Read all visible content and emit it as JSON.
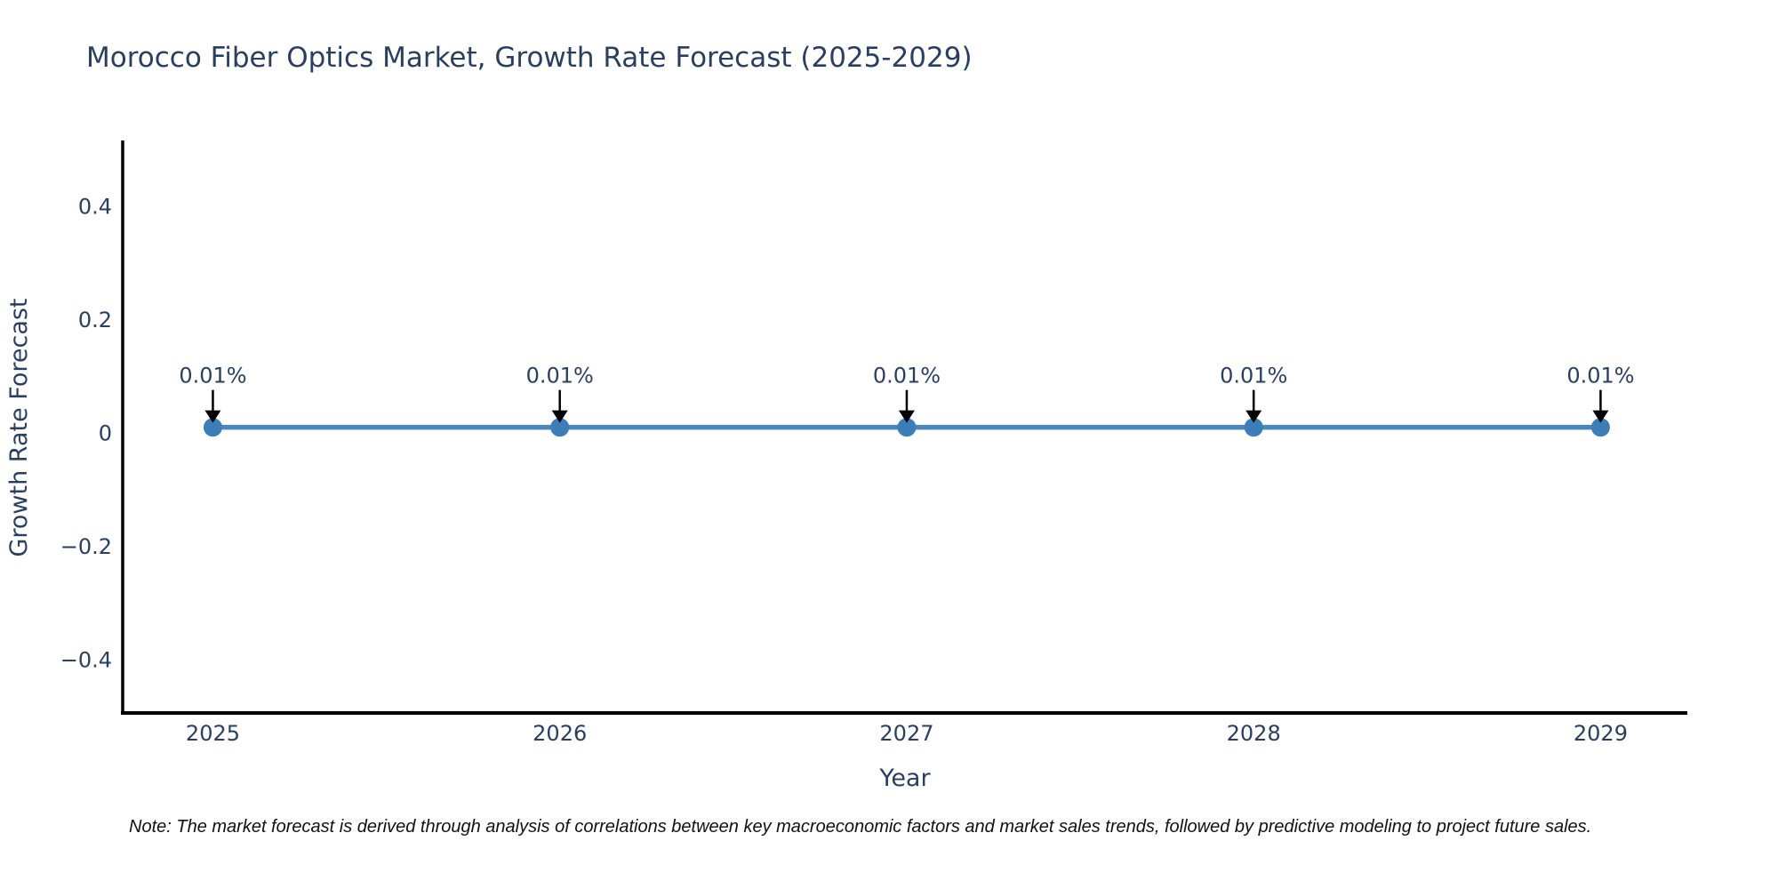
{
  "title": "Morocco Fiber Optics Market, Growth Rate Forecast (2025-2029)",
  "note": "Note: The market forecast is derived through analysis of correlations between key macroeconomic factors and market sales trends, followed by predictive modeling to project future sales.",
  "colors": {
    "background": "#ffffff",
    "title_text": "#2a3f5f",
    "axis_text": "#2a3f5f",
    "axis_line": "#000000",
    "line": "#4a86ba",
    "marker": "#3d7eb8",
    "annotation_text": "#2a3f5f",
    "arrow": "#000000",
    "note_text": "#111111"
  },
  "chart_data": {
    "type": "line",
    "title": "Morocco Fiber Optics Market, Growth Rate Forecast (2025-2029)",
    "xlabel": "Year",
    "ylabel": "Growth Rate Forecast",
    "x": [
      2025,
      2026,
      2027,
      2028,
      2029
    ],
    "series": [
      {
        "name": "Growth Rate Forecast",
        "values": [
          0.01,
          0.01,
          0.01,
          0.01,
          0.01
        ]
      }
    ],
    "point_labels": [
      "0.01%",
      "0.01%",
      "0.01%",
      "0.01%",
      "0.01%"
    ],
    "unit": "%",
    "xticks": [
      2025,
      2026,
      2027,
      2028,
      2029
    ],
    "xtick_labels": [
      "2025",
      "2026",
      "2027",
      "2028",
      "2029"
    ],
    "yticks": [
      -0.4,
      -0.2,
      0,
      0.2,
      0.4
    ],
    "ytick_labels": [
      "−0.4",
      "−0.2",
      "0",
      "0.2",
      "0.4"
    ],
    "xlim": [
      2024.74,
      2029.25
    ],
    "ylim": [
      -0.494,
      0.513
    ],
    "grid": false,
    "legend": "none",
    "annotations": "black arrow pointing down from each value label to its marker"
  }
}
